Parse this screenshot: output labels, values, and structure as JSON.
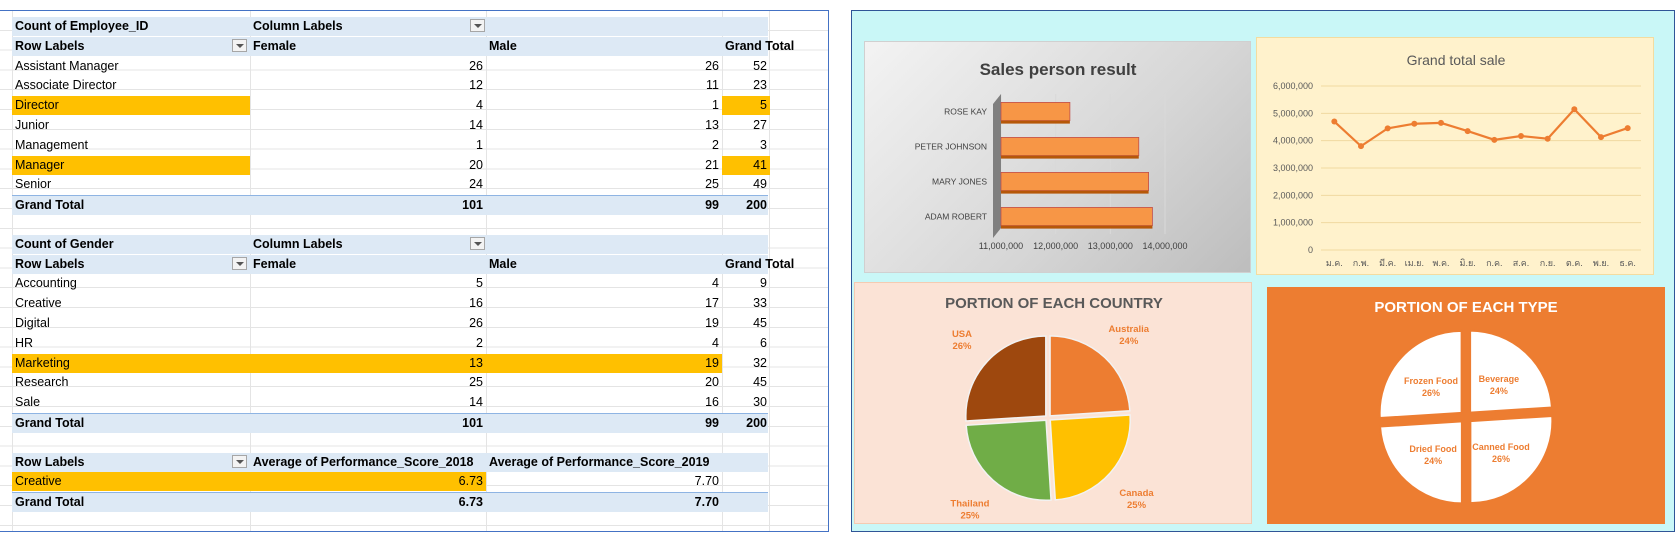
{
  "pivot1": {
    "measure": "Count of Employee_ID",
    "column_labels": "Column Labels",
    "row_labels": "Row Labels",
    "columns": [
      "Female",
      "Male",
      "Grand Total"
    ],
    "rows": [
      {
        "label": "Assistant Manager",
        "female": "26",
        "male": "26",
        "total": "52"
      },
      {
        "label": "Associate Director",
        "female": "12",
        "male": "11",
        "total": "23"
      },
      {
        "label": "Director",
        "female": "4",
        "male": "1",
        "total": "5"
      },
      {
        "label": "Junior",
        "female": "14",
        "male": "13",
        "total": "27"
      },
      {
        "label": "Management",
        "female": "1",
        "male": "2",
        "total": "3"
      },
      {
        "label": "Manager",
        "female": "20",
        "male": "21",
        "total": "41"
      },
      {
        "label": "Senior",
        "female": "24",
        "male": "25",
        "total": "49"
      }
    ],
    "grand_total": {
      "label": "Grand Total",
      "female": "101",
      "male": "99",
      "total": "200"
    }
  },
  "pivot2": {
    "measure": "Count of Gender",
    "column_labels": "Column Labels",
    "row_labels": "Row Labels",
    "columns": [
      "Female",
      "Male",
      "Grand Total"
    ],
    "rows": [
      {
        "label": "Accounting",
        "female": "5",
        "male": "4",
        "total": "9"
      },
      {
        "label": "Creative",
        "female": "16",
        "male": "17",
        "total": "33"
      },
      {
        "label": "Digital",
        "female": "26",
        "male": "19",
        "total": "45"
      },
      {
        "label": "HR",
        "female": "2",
        "male": "4",
        "total": "6"
      },
      {
        "label": "Marketing",
        "female": "13",
        "male": "19",
        "total": "32"
      },
      {
        "label": "Research",
        "female": "25",
        "male": "20",
        "total": "45"
      },
      {
        "label": "Sale",
        "female": "14",
        "male": "16",
        "total": "30"
      }
    ],
    "grand_total": {
      "label": "Grand Total",
      "female": "101",
      "male": "99",
      "total": "200"
    }
  },
  "pivot3": {
    "row_labels": "Row Labels",
    "columns": [
      "Average of Performance_Score_2018",
      "Average of Performance_Score_2019"
    ],
    "rows": [
      {
        "label": "Creative",
        "v2018": "6.73",
        "v2019": "7.70"
      }
    ],
    "grand_total": {
      "label": "Grand Total",
      "v2018": "6.73",
      "v2019": "7.70"
    }
  },
  "colors": {
    "highlight": "#ffc000",
    "header_bg": "#dde9f5",
    "orange": "#ed7d31",
    "dashboard_bg": "#c9f7f7"
  },
  "chart_data": [
    {
      "type": "bar",
      "orientation": "horizontal",
      "title": "Sales person result",
      "categories": [
        "ADAM ROBERT",
        "MARY JONES",
        "PETER JOHNSON",
        "ROSE KAY"
      ],
      "values": [
        13770000,
        13700000,
        13520000,
        12260000
      ],
      "xlim": [
        11000000,
        14000000
      ],
      "xticks": [
        "11,000,000",
        "12,000,000",
        "13,000,000",
        "14,000,000"
      ],
      "color": "#f79646"
    },
    {
      "type": "line",
      "title": "Grand total sale",
      "categories": [
        "ม.ค.",
        "ก.พ.",
        "มี.ค.",
        "เม.ย.",
        "พ.ค.",
        "มิ.ย.",
        "ก.ค.",
        "ส.ค.",
        "ก.ย.",
        "ต.ค.",
        "พ.ย.",
        "ธ.ค."
      ],
      "values": [
        4700000,
        3800000,
        4450000,
        4620000,
        4650000,
        4350000,
        4030000,
        4170000,
        4070000,
        5150000,
        4130000,
        4460000
      ],
      "ylim": [
        0,
        6000000
      ],
      "yticks": [
        "0",
        "1,000,000",
        "2,000,000",
        "3,000,000",
        "4,000,000",
        "5,000,000",
        "6,000,000"
      ],
      "color": "#ed7d31"
    },
    {
      "type": "pie",
      "title": "PORTION OF EACH COUNTRY",
      "slices": [
        {
          "label": "Australia",
          "pct": "24%",
          "value": 24,
          "color": "#ed7d31"
        },
        {
          "label": "Canada",
          "pct": "25%",
          "value": 25,
          "color": "#ffc000"
        },
        {
          "label": "Thailand",
          "pct": "25%",
          "value": 25,
          "color": "#70ad47"
        },
        {
          "label": "USA",
          "pct": "26%",
          "value": 26,
          "color": "#9e480e"
        }
      ]
    },
    {
      "type": "pie",
      "title": "PORTION OF EACH TYPE",
      "slices": [
        {
          "label": "Beverage",
          "pct": "24%",
          "value": 24,
          "color": "#ffffff"
        },
        {
          "label": "Canned Food",
          "pct": "26%",
          "value": 26,
          "color": "#ffffff"
        },
        {
          "label": "Dried Food",
          "pct": "24%",
          "value": 24,
          "color": "#ffffff"
        },
        {
          "label": "Frozen Food",
          "pct": "26%",
          "value": 26,
          "color": "#ffffff"
        }
      ]
    }
  ]
}
